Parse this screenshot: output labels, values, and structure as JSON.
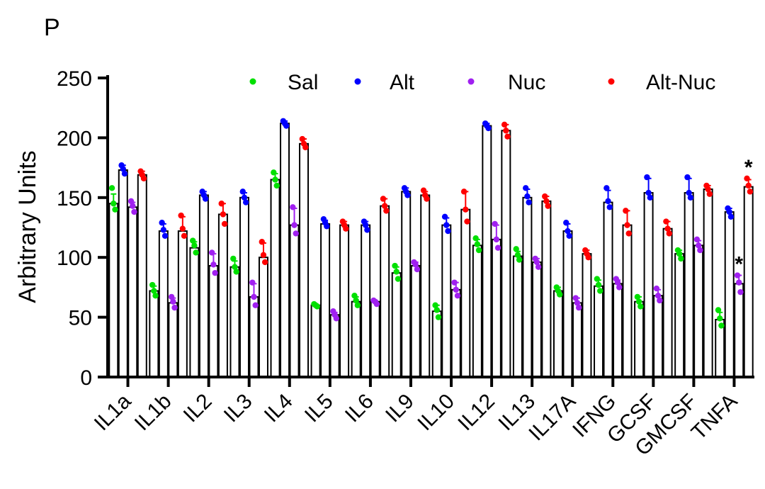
{
  "panel_label": "P",
  "colors": {
    "Sal": "#00e000",
    "Alt": "#0000ff",
    "Nuc": "#a020f0",
    "Alt-Nuc": "#ff0000"
  },
  "chart_data": {
    "type": "bar",
    "title": "",
    "xlabel": "",
    "ylabel": "Arbitrary Units",
    "ylim": [
      0,
      250
    ],
    "yticks": [
      0,
      50,
      100,
      150,
      200,
      250
    ],
    "legend_position": "top",
    "categories": [
      "IL1a",
      "IL1b",
      "IL2",
      "IL3",
      "IL4",
      "IL5",
      "IL6",
      "IL9",
      "IL10",
      "IL12",
      "IL13",
      "IL17A",
      "IFNG",
      "GCSF",
      "GMCSF",
      "TNFA"
    ],
    "series": [
      {
        "name": "Sal",
        "values": [
          145,
          72,
          108,
          92,
          165,
          60,
          63,
          87,
          55,
          110,
          101,
          72,
          76,
          63,
          103,
          48
        ],
        "points": [
          [
            158,
            145,
            140
          ],
          [
            77,
            72,
            68
          ],
          [
            114,
            110,
            104
          ],
          [
            99,
            92,
            88
          ],
          [
            171,
            165,
            160
          ],
          [
            61,
            60,
            59
          ],
          [
            68,
            64,
            60
          ],
          [
            93,
            88,
            82
          ],
          [
            60,
            56,
            50
          ],
          [
            116,
            111,
            106
          ],
          [
            107,
            102,
            98
          ],
          [
            75,
            72,
            69
          ],
          [
            82,
            77,
            72
          ],
          [
            67,
            63,
            59
          ],
          [
            106,
            103,
            99
          ],
          [
            56,
            49,
            43
          ]
        ],
        "err": [
          8,
          4,
          5,
          5,
          5,
          1,
          4,
          5,
          5,
          5,
          4,
          3,
          5,
          4,
          3,
          6
        ]
      },
      {
        "name": "Alt",
        "values": [
          173,
          122,
          152,
          150,
          212,
          128,
          127,
          155,
          127,
          210,
          150,
          122,
          146,
          154,
          154,
          138
        ],
        "points": [
          [
            177,
            174,
            170
          ],
          [
            129,
            123,
            118
          ],
          [
            155,
            152,
            149
          ],
          [
            155,
            150,
            146
          ],
          [
            214,
            212,
            210
          ],
          [
            132,
            129,
            126
          ],
          [
            130,
            127,
            123
          ],
          [
            158,
            155,
            152
          ],
          [
            134,
            127,
            122
          ],
          [
            212,
            210,
            208
          ],
          [
            158,
            151,
            146
          ],
          [
            129,
            122,
            118
          ],
          [
            158,
            147,
            142
          ],
          [
            167,
            154,
            150
          ],
          [
            167,
            154,
            150
          ],
          [
            141,
            138,
            134
          ]
        ],
        "err": [
          4,
          6,
          3,
          4,
          2,
          3,
          3,
          3,
          6,
          2,
          7,
          6,
          10,
          12,
          12,
          3
        ]
      },
      {
        "name": "Nuc",
        "values": [
          142,
          62,
          93,
          67,
          127,
          52,
          63,
          93,
          73,
          115,
          96,
          62,
          78,
          68,
          110,
          78
        ],
        "points": [
          [
            147,
            143,
            138
          ],
          [
            67,
            63,
            58
          ],
          [
            104,
            94,
            87
          ],
          [
            79,
            67,
            60
          ],
          [
            142,
            127,
            120
          ],
          [
            55,
            52,
            49
          ],
          [
            64,
            63,
            61
          ],
          [
            96,
            94,
            90
          ],
          [
            79,
            73,
            68
          ],
          [
            128,
            115,
            108
          ],
          [
            99,
            96,
            92
          ],
          [
            66,
            62,
            58
          ],
          [
            82,
            79,
            75
          ],
          [
            74,
            68,
            64
          ],
          [
            115,
            110,
            106
          ],
          [
            85,
            79,
            71
          ]
        ],
        "err": [
          4,
          4,
          10,
          11,
          14,
          2,
          1,
          3,
          6,
          12,
          3,
          4,
          3,
          5,
          4,
          7
        ]
      },
      {
        "name": "Alt-Nuc",
        "values": [
          169,
          122,
          136,
          100,
          195,
          127,
          143,
          152,
          140,
          206,
          147,
          103,
          127,
          124,
          157,
          159
        ],
        "points": [
          [
            172,
            169,
            166
          ],
          [
            135,
            124,
            118
          ],
          [
            145,
            136,
            128
          ],
          [
            113,
            102,
            96
          ],
          [
            199,
            195,
            192
          ],
          [
            130,
            127,
            124
          ],
          [
            149,
            143,
            139
          ],
          [
            156,
            152,
            149
          ],
          [
            155,
            140,
            130
          ],
          [
            211,
            206,
            201
          ],
          [
            151,
            147,
            143
          ],
          [
            106,
            103,
            100
          ],
          [
            139,
            127,
            120
          ],
          [
            130,
            124,
            120
          ],
          [
            160,
            157,
            153
          ],
          [
            166,
            160,
            155
          ]
        ],
        "err": [
          3,
          12,
          9,
          12,
          4,
          3,
          6,
          3,
          15,
          5,
          4,
          3,
          12,
          6,
          3,
          6
        ]
      }
    ],
    "annotations": [
      {
        "text": "*",
        "category": "TNFA",
        "series": "Nuc"
      },
      {
        "text": "*",
        "category": "TNFA",
        "series": "Alt-Nuc"
      }
    ]
  }
}
